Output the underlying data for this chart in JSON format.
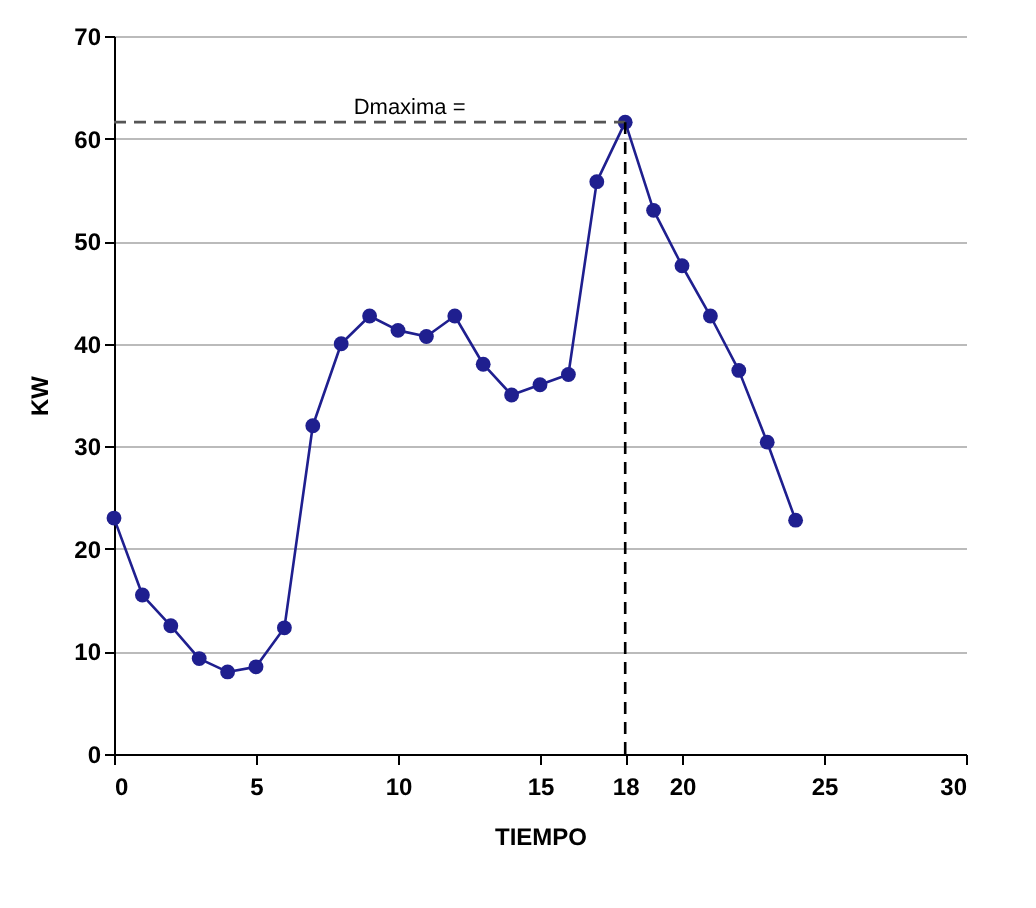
{
  "chart_data": {
    "type": "line",
    "xlabel": "TIEMPO",
    "ylabel": "KW",
    "x": [
      0,
      1,
      2,
      3,
      4,
      5,
      6,
      7,
      8,
      9,
      10,
      11,
      12,
      13,
      14,
      15,
      16,
      17,
      18,
      19,
      20,
      21,
      22,
      23,
      24
    ],
    "series": [
      {
        "color": "#1f1f8f",
        "values": [
          23,
          15.5,
          12.5,
          9.3,
          8,
          8.5,
          12.3,
          32,
          40,
          42.7,
          41.3,
          40.7,
          42.7,
          38,
          35,
          36,
          37,
          55.8,
          61.6,
          53,
          47.6,
          42.7,
          37.4,
          30.4,
          22.8
        ]
      }
    ],
    "xlim": [
      0,
      30
    ],
    "xticks": [
      0,
      5,
      10,
      15,
      18,
      20,
      25,
      30
    ],
    "ylim": [
      0,
      70
    ],
    "yticks": [
      0,
      10,
      20,
      30,
      40,
      50,
      60,
      70
    ],
    "grid": "y",
    "marker": "circle",
    "line_style": "solid",
    "ref_lines": [
      {
        "axis": "y",
        "value": 61.6,
        "label": "Dmaxima =",
        "line_style": "dashed",
        "color": "#555555"
      },
      {
        "axis": "x",
        "value": 18,
        "line_style": "dashed",
        "color": "#000000"
      }
    ]
  }
}
